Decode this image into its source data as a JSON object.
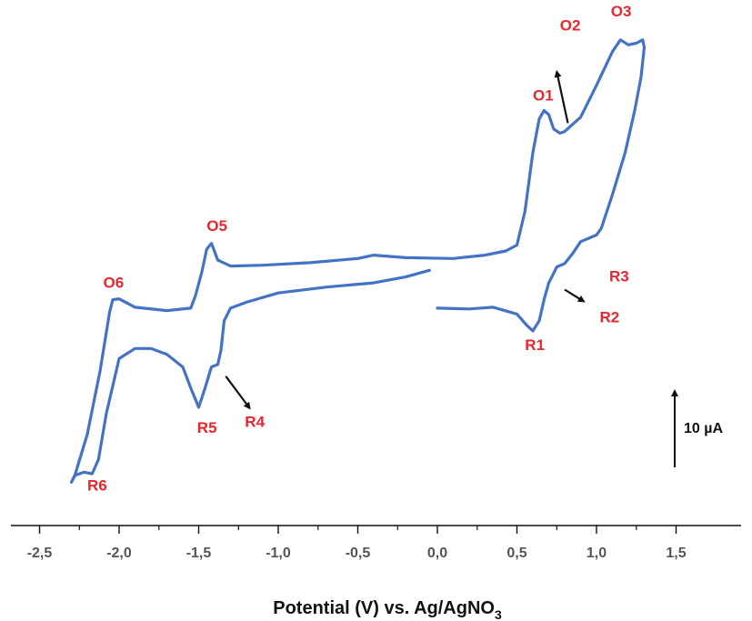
{
  "chart_data": {
    "type": "line",
    "xlabel": "Potential (V) vs. Ag/AgNO",
    "xlabel_subscript": "3",
    "xlim": [
      -2.4,
      1.7
    ],
    "xticks": [
      -2.5,
      -2.0,
      -1.5,
      -1.0,
      -0.5,
      0.0,
      0.5,
      1.0,
      1.5
    ],
    "xtick_labels": [
      "-2,5",
      "-2,0",
      "-1,5",
      "-1,0",
      "-0,5",
      "0,0",
      "0,5",
      "1,0",
      "1,5"
    ],
    "y_unit": "µA",
    "y_scale_bar": {
      "value": 10,
      "label": "10 µA"
    },
    "grid": false,
    "line_color": "#4472c4",
    "label_color": "#e8262d",
    "series": [
      {
        "points": [
          [
            0.0,
            -1.5
          ],
          [
            0.2,
            -1.6
          ],
          [
            0.35,
            -1.4
          ],
          [
            0.5,
            -2.2
          ],
          [
            0.56,
            -3.5
          ],
          [
            0.6,
            -4.2
          ],
          [
            0.64,
            -3.0
          ],
          [
            0.67,
            -0.5
          ],
          [
            0.7,
            1.5
          ],
          [
            0.75,
            3.4
          ],
          [
            0.8,
            3.8
          ],
          [
            0.85,
            5.0
          ],
          [
            0.9,
            6.4
          ],
          [
            0.95,
            6.8
          ],
          [
            1.0,
            7.2
          ],
          [
            1.03,
            8.0
          ],
          [
            1.1,
            12.0
          ],
          [
            1.18,
            17.0
          ],
          [
            1.24,
            22.0
          ],
          [
            1.28,
            26.0
          ],
          [
            1.3,
            29.5
          ],
          [
            1.29,
            30.4
          ],
          [
            1.25,
            30.0
          ],
          [
            1.2,
            29.8
          ],
          [
            1.15,
            30.4
          ],
          [
            1.1,
            29.0
          ],
          [
            1.0,
            25.0
          ],
          [
            0.9,
            21.2
          ],
          [
            0.8,
            19.5
          ],
          [
            0.77,
            19.3
          ],
          [
            0.73,
            19.8
          ],
          [
            0.7,
            21.5
          ],
          [
            0.67,
            22.0
          ],
          [
            0.64,
            21.0
          ],
          [
            0.6,
            17.0
          ],
          [
            0.55,
            10.0
          ],
          [
            0.5,
            6.0
          ],
          [
            0.43,
            5.3
          ],
          [
            0.3,
            4.8
          ],
          [
            0.1,
            4.4
          ],
          [
            -0.2,
            4.5
          ],
          [
            -0.4,
            4.8
          ],
          [
            -0.5,
            4.4
          ],
          [
            -0.8,
            3.9
          ],
          [
            -1.1,
            3.6
          ],
          [
            -1.3,
            3.5
          ],
          [
            -1.38,
            4.2
          ],
          [
            -1.42,
            6.2
          ],
          [
            -1.45,
            5.5
          ],
          [
            -1.48,
            2.8
          ],
          [
            -1.52,
            0.0
          ],
          [
            -1.55,
            -1.5
          ],
          [
            -1.7,
            -1.8
          ],
          [
            -1.9,
            -1.4
          ],
          [
            -2.0,
            -0.4
          ],
          [
            -2.04,
            -0.5
          ],
          [
            -2.06,
            -2.0
          ],
          [
            -2.12,
            -9.0
          ],
          [
            -2.2,
            -16.5
          ],
          [
            -2.28,
            -21.5
          ],
          [
            -2.3,
            -22.2
          ],
          [
            -2.28,
            -21.4
          ],
          [
            -2.22,
            -21.0
          ],
          [
            -2.17,
            -21.2
          ],
          [
            -2.13,
            -19.5
          ],
          [
            -2.08,
            -14.0
          ],
          [
            -2.0,
            -7.5
          ],
          [
            -1.9,
            -6.3
          ],
          [
            -1.8,
            -6.3
          ],
          [
            -1.7,
            -7.0
          ],
          [
            -1.6,
            -8.5
          ],
          [
            -1.55,
            -11.0
          ],
          [
            -1.5,
            -13.3
          ],
          [
            -1.46,
            -11.0
          ],
          [
            -1.42,
            -8.5
          ],
          [
            -1.38,
            -8.2
          ],
          [
            -1.36,
            -6.5
          ],
          [
            -1.34,
            -3.0
          ],
          [
            -1.3,
            -1.5
          ],
          [
            -1.2,
            -0.8
          ],
          [
            -1.0,
            0.3
          ],
          [
            -0.7,
            1.0
          ],
          [
            -0.4,
            1.5
          ],
          [
            -0.2,
            2.2
          ],
          [
            -0.05,
            3.0
          ]
        ]
      }
    ],
    "annotations": [
      {
        "text": "O1",
        "x": 0.6,
        "y": 23.2
      },
      {
        "text": "O2",
        "x": 0.77,
        "y": 31.5
      },
      {
        "text": "O3",
        "x": 1.09,
        "y": 33.2
      },
      {
        "text": "R1",
        "x": 0.55,
        "y": -6.5
      },
      {
        "text": "R2",
        "x": 1.02,
        "y": -3.2
      },
      {
        "text": "R3",
        "x": 1.08,
        "y": 1.7
      },
      {
        "text": "O5",
        "x": -1.45,
        "y": 7.7
      },
      {
        "text": "O6",
        "x": -2.1,
        "y": 0.9
      },
      {
        "text": "R4",
        "x": -1.21,
        "y": -15.6
      },
      {
        "text": "R5",
        "x": -1.51,
        "y": -16.3
      },
      {
        "text": "R6",
        "x": -2.2,
        "y": -23.2
      }
    ],
    "arrows": [
      {
        "from": [
          0.82,
          20.5
        ],
        "to": [
          0.75,
          26.6
        ]
      },
      {
        "from": [
          0.8,
          0.7
        ],
        "to": [
          0.92,
          -0.7
        ]
      },
      {
        "from": [
          -1.33,
          -9.6
        ],
        "to": [
          -1.18,
          -13.4
        ]
      }
    ]
  }
}
